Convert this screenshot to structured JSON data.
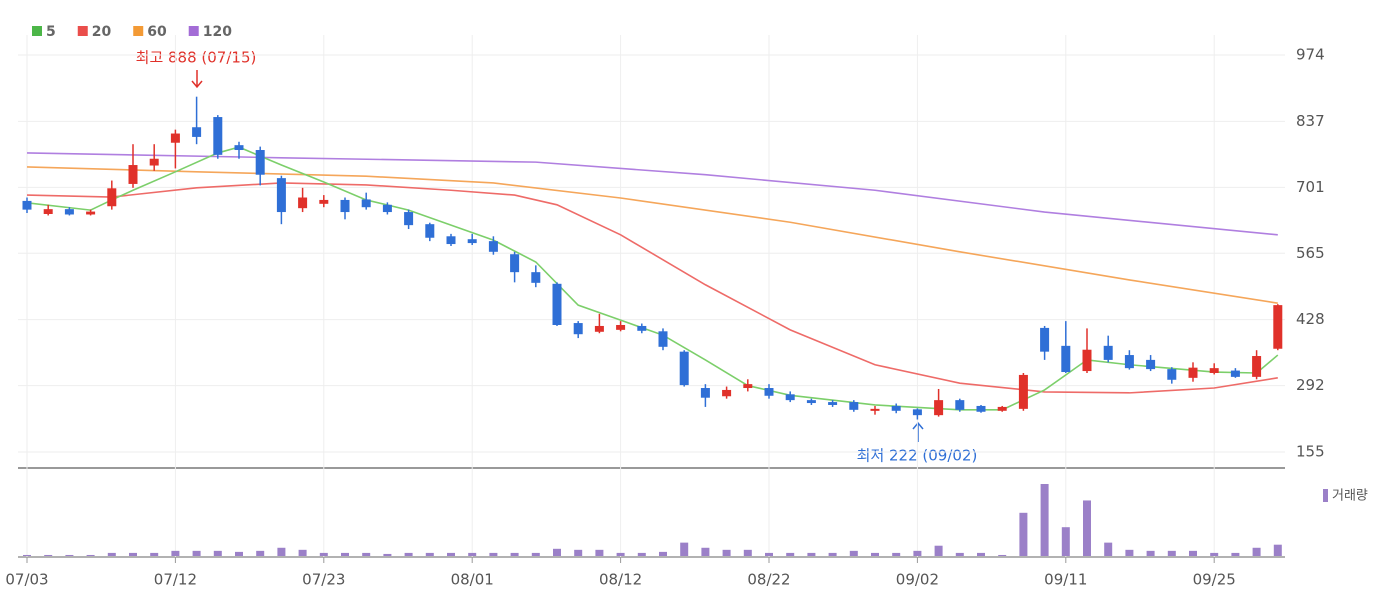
{
  "chart_data": {
    "type": "candlestick",
    "legend": [
      {
        "name": "5",
        "color": "#4cb648"
      },
      {
        "name": "20",
        "color": "#ea4e4b"
      },
      {
        "name": "60",
        "color": "#f39a35"
      },
      {
        "name": "120",
        "color": "#a36cd6"
      }
    ],
    "categories": [
      "07/03",
      null,
      null,
      null,
      null,
      null,
      null,
      "07/12",
      null,
      null,
      null,
      null,
      null,
      null,
      "07/23",
      null,
      null,
      null,
      null,
      null,
      null,
      "08/01",
      null,
      null,
      null,
      null,
      null,
      null,
      "08/12",
      null,
      null,
      null,
      null,
      null,
      null,
      "08/22",
      null,
      null,
      null,
      null,
      null,
      null,
      "09/02",
      null,
      null,
      null,
      null,
      null,
      null,
      "09/11",
      null,
      null,
      null,
      null,
      null,
      null,
      "09/25",
      null,
      null,
      null
    ],
    "up_color": "#e0312a",
    "down_color": "#2f6fd6",
    "open": [
      673,
      646,
      656,
      645,
      662,
      708,
      746,
      793,
      825,
      846,
      788,
      778,
      720,
      658,
      667,
      675,
      676,
      665,
      650,
      625,
      600,
      594,
      590,
      563,
      526,
      502,
      421,
      403,
      407,
      415,
      404,
      362,
      287,
      270,
      287,
      287,
      274,
      262,
      258,
      258,
      240,
      250,
      243,
      231,
      262,
      250,
      240,
      244,
      411,
      374,
      322,
      374,
      355,
      345,
      326,
      308,
      318,
      323,
      310,
      368
    ],
    "high": [
      680,
      665,
      660,
      655,
      715,
      790,
      790,
      820,
      888,
      850,
      795,
      785,
      725,
      700,
      685,
      680,
      690,
      670,
      655,
      628,
      605,
      605,
      600,
      568,
      540,
      505,
      425,
      440,
      425,
      420,
      410,
      365,
      295,
      290,
      305,
      295,
      280,
      265,
      262,
      262,
      250,
      255,
      245,
      285,
      265,
      252,
      250,
      318,
      415,
      425,
      410,
      395,
      365,
      355,
      330,
      340,
      338,
      328,
      365,
      460
    ],
    "low": [
      648,
      643,
      643,
      643,
      655,
      700,
      735,
      740,
      790,
      760,
      760,
      705,
      625,
      650,
      660,
      635,
      655,
      645,
      615,
      590,
      580,
      582,
      562,
      505,
      495,
      415,
      390,
      400,
      404,
      400,
      365,
      290,
      248,
      265,
      280,
      265,
      258,
      252,
      248,
      238,
      232,
      235,
      222,
      228,
      238,
      236,
      238,
      240,
      345,
      318,
      318,
      340,
      325,
      322,
      296,
      300,
      315,
      308,
      305,
      365
    ],
    "close": [
      655,
      656,
      645,
      651,
      699,
      747,
      760,
      812,
      805,
      768,
      778,
      727,
      650,
      680,
      675,
      650,
      660,
      650,
      623,
      597,
      584,
      586,
      568,
      526,
      504,
      417,
      398,
      415,
      417,
      405,
      372,
      293,
      267,
      283,
      295,
      271,
      262,
      256,
      252,
      242,
      244,
      240,
      231,
      262,
      242,
      238,
      248,
      314,
      362,
      320,
      366,
      345,
      328,
      326,
      304,
      329,
      328,
      310,
      353,
      458
    ],
    "series": [
      {
        "name": "5",
        "color": "#7ccf6a",
        "x": [
          0,
          3,
          4,
          5,
          7,
          9,
          10,
          12,
          14,
          16,
          18,
          20,
          22,
          24,
          26,
          28,
          30,
          32,
          34,
          36,
          40,
          44,
          46,
          48,
          50,
          52,
          56,
          58,
          59
        ],
        "values": [
          669,
          654,
          675,
          695,
          733,
          772,
          784,
          747,
          712,
          675,
          654,
          623,
          592,
          547,
          458,
          427,
          396,
          345,
          292,
          272,
          252,
          242,
          242,
          283,
          345,
          335,
          320,
          318,
          355
        ]
      },
      {
        "name": "20",
        "color": "#ee6b68",
        "x": [
          0,
          4,
          8,
          12,
          16,
          20,
          23,
          25,
          28,
          32,
          36,
          40,
          44,
          48,
          52,
          56,
          59
        ],
        "values": [
          685,
          681,
          700,
          710,
          706,
          695,
          685,
          665,
          603,
          500,
          407,
          335,
          297,
          279,
          277,
          287,
          308
        ]
      },
      {
        "name": "60",
        "color": "#f5a65a",
        "x": [
          0,
          8,
          16,
          22,
          28,
          36,
          44,
          52,
          59
        ],
        "values": [
          743,
          733,
          724,
          710,
          679,
          629,
          568,
          510,
          462
        ]
      },
      {
        "name": "120",
        "color": "#b07fe0",
        "x": [
          0,
          12,
          24,
          32,
          40,
          48,
          59
        ],
        "values": [
          772,
          762,
          753,
          727,
          695,
          650,
          603
        ]
      }
    ],
    "volume": {
      "name": "거래량",
      "color": "#9b80c8",
      "values": [
        1,
        1,
        1,
        1,
        3,
        3,
        3,
        5,
        5,
        5,
        4,
        5,
        8,
        6,
        3,
        3,
        3,
        2,
        3,
        3,
        3,
        3,
        3,
        3,
        3,
        7,
        6,
        6,
        3,
        3,
        4,
        13,
        8,
        6,
        6,
        3,
        3,
        3,
        3,
        5,
        3,
        3,
        5,
        10,
        3,
        3,
        1,
        42,
        70,
        28,
        54,
        13,
        6,
        5,
        5,
        5,
        3,
        3,
        8,
        11
      ]
    },
    "ylim": [
      155,
      974
    ],
    "yticks": [
      155,
      292,
      428,
      565,
      701,
      837,
      974
    ],
    "annotations": [
      {
        "text": "최고 888 (07/15)",
        "color": "#e0312a"
      },
      {
        "text": "최저 222 (09/02)",
        "color": "#2f6fd6"
      }
    ]
  }
}
